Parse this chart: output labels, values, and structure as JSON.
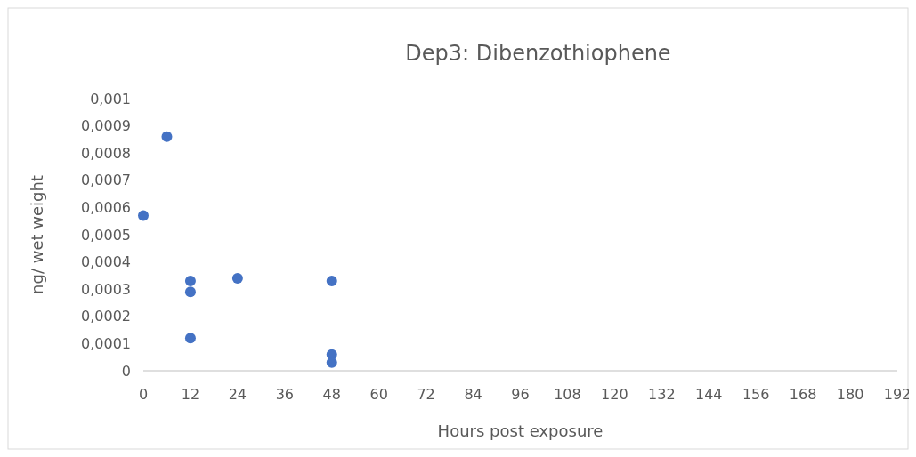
{
  "chart_data": {
    "type": "scatter",
    "title": "Dep3: Dibenzothiophene",
    "xlabel": "Hours post exposure",
    "ylabel": "ng/ wet weight",
    "x": [
      0,
      6,
      12,
      12,
      12,
      24,
      48,
      48,
      48
    ],
    "series": [
      {
        "color": "#4472c4",
        "values": [
          0.00057,
          0.00086,
          0.00033,
          0.00029,
          0.00012,
          0.00034,
          0.00033,
          6e-05,
          3e-05
        ]
      }
    ],
    "xlim": [
      0,
      192
    ],
    "xticks": [
      0,
      12,
      24,
      36,
      48,
      60,
      72,
      84,
      96,
      108,
      120,
      132,
      144,
      156,
      168,
      180,
      192
    ],
    "ylim": [
      0,
      0.001
    ],
    "yticks": [
      {
        "value": 0,
        "label": "0"
      },
      {
        "value": 0.0001,
        "label": "0,0001"
      },
      {
        "value": 0.0002,
        "label": "0,0002"
      },
      {
        "value": 0.0003,
        "label": "0,0003"
      },
      {
        "value": 0.0004,
        "label": "0,0004"
      },
      {
        "value": 0.0005,
        "label": "0,0005"
      },
      {
        "value": 0.0006,
        "label": "0,0006"
      },
      {
        "value": 0.0007,
        "label": "0,0007"
      },
      {
        "value": 0.0008,
        "label": "0,0008"
      },
      {
        "value": 0.0009,
        "label": "0,0009"
      },
      {
        "value": 0.001,
        "label": "0,001"
      }
    ],
    "grid": false,
    "marker": "circle"
  }
}
